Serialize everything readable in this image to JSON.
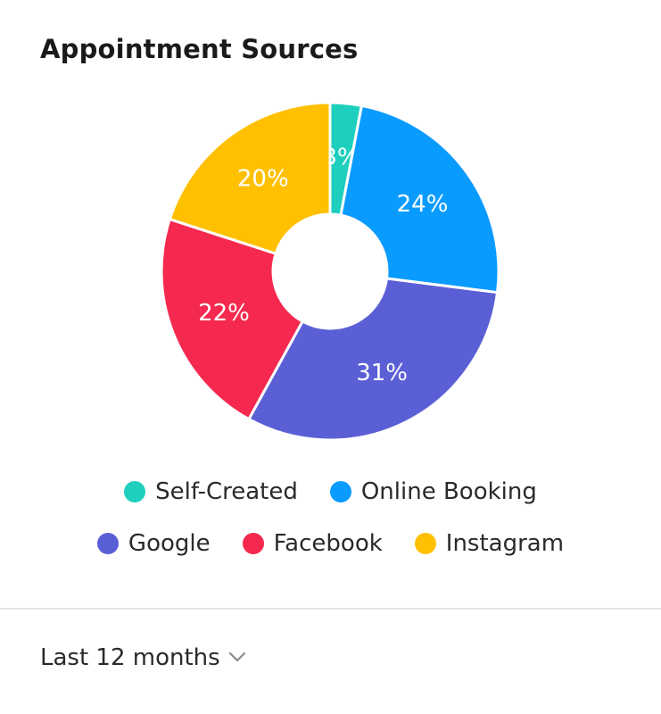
{
  "card": {
    "title": "Appointment Sources"
  },
  "chart_data": {
    "type": "pie",
    "donut": true,
    "categories": [
      "Self-Created",
      "Online Booking",
      "Google",
      "Facebook",
      "Instagram"
    ],
    "values": [
      3,
      24,
      31,
      22,
      20
    ],
    "value_labels": [
      "3%",
      "24%",
      "31%",
      "22%",
      "20%"
    ],
    "colors": [
      "#1ecfbe",
      "#0a9bff",
      "#5b5fd6",
      "#f5294f",
      "#ffc000"
    ],
    "title": "Appointment Sources",
    "legend": "bottom"
  },
  "legend": {
    "rows": [
      [
        {
          "label": "Self-Created",
          "color": "#1ecfbe"
        },
        {
          "label": "Online Booking",
          "color": "#0a9bff"
        }
      ],
      [
        {
          "label": "Google",
          "color": "#5b5fd6"
        },
        {
          "label": "Facebook",
          "color": "#f5294f"
        },
        {
          "label": "Instagram",
          "color": "#ffc000"
        }
      ]
    ]
  },
  "footer": {
    "period_label": "Last 12 months",
    "period_icon": "chevron-down-icon"
  }
}
